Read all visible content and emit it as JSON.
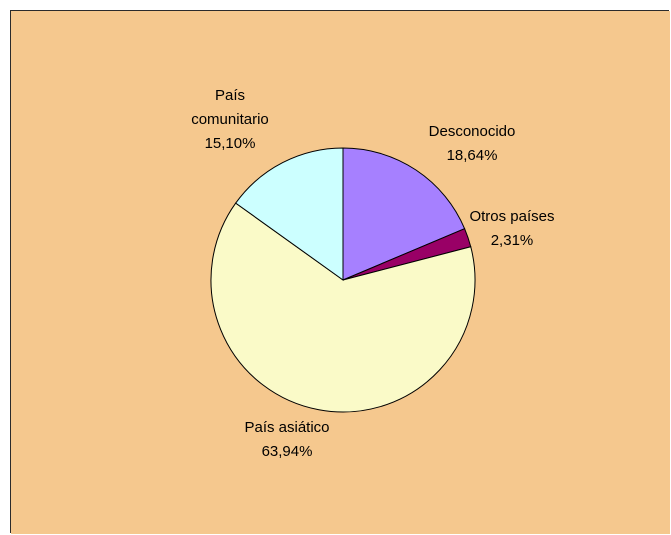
{
  "chart_data": {
    "type": "pie",
    "title": "",
    "slices": [
      {
        "label": "Desconocido",
        "value": 18.64,
        "display": "18,64%",
        "color": "#A680FF"
      },
      {
        "label": "Otros países",
        "value": 2.31,
        "display": "2,31%",
        "color": "#990066"
      },
      {
        "label": "País asiático",
        "value": 63.94,
        "display": "63,94%",
        "color": "#FAFAC8"
      },
      {
        "label": "País comunitario",
        "value": 15.1,
        "display": "15,10%",
        "color": "#CCFFFF"
      }
    ],
    "start_angle": "12 o'clock, clockwise",
    "legend": "none",
    "background_color": "#F5C88E",
    "slice_border_color": "#000000"
  }
}
